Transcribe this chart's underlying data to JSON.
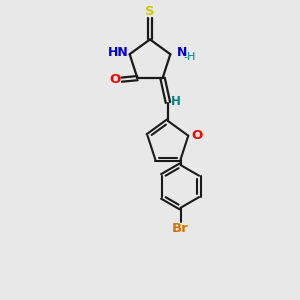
{
  "bg_color": "#e8e8e8",
  "bond_color": "#1a1a1a",
  "atom_colors": {
    "N": "#0000cc",
    "O": "#ff0000",
    "S": "#cccc00",
    "Br": "#cc7700",
    "H_teal": "#008080",
    "C": "#1a1a1a"
  },
  "figsize": [
    3.0,
    3.0
  ],
  "dpi": 100,
  "xlim": [
    0,
    10
  ],
  "ylim": [
    0,
    10
  ]
}
